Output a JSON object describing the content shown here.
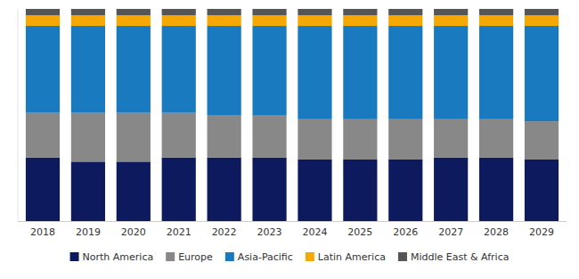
{
  "chart_data": {
    "type": "bar",
    "stacked": true,
    "categories": [
      "2018",
      "2019",
      "2020",
      "2021",
      "2022",
      "2023",
      "2024",
      "2025",
      "2026",
      "2027",
      "2028",
      "2029"
    ],
    "series": [
      {
        "name": "North America",
        "color": "#0d1b5e",
        "values": [
          0.3,
          0.28,
          0.28,
          0.3,
          0.3,
          0.3,
          0.29,
          0.29,
          0.29,
          0.3,
          0.3,
          0.29
        ]
      },
      {
        "name": "Europe",
        "color": "#888888",
        "values": [
          0.21,
          0.23,
          0.23,
          0.21,
          0.2,
          0.2,
          0.19,
          0.19,
          0.19,
          0.18,
          0.18,
          0.18
        ]
      },
      {
        "name": "Asia-Pacific",
        "color": "#1a7abf",
        "values": [
          0.41,
          0.41,
          0.41,
          0.41,
          0.42,
          0.42,
          0.44,
          0.44,
          0.44,
          0.44,
          0.44,
          0.45
        ]
      },
      {
        "name": "Latin America",
        "color": "#f5a800",
        "values": [
          0.05,
          0.05,
          0.05,
          0.05,
          0.05,
          0.05,
          0.05,
          0.05,
          0.05,
          0.05,
          0.05,
          0.05
        ]
      },
      {
        "name": "Middle East & Africa",
        "color": "#555555",
        "values": [
          0.03,
          0.03,
          0.03,
          0.03,
          0.03,
          0.03,
          0.03,
          0.03,
          0.03,
          0.03,
          0.03,
          0.03
        ]
      }
    ],
    "ylim": [
      0,
      1.0
    ],
    "tick_labels": "x",
    "grid": false,
    "legend": "bottom"
  }
}
